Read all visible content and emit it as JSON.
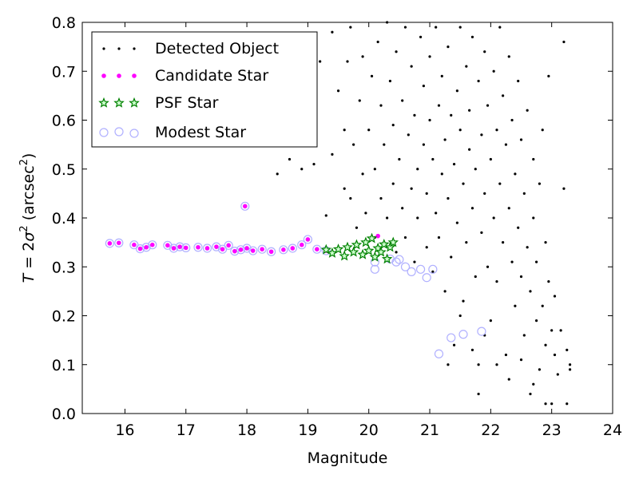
{
  "chart_data": {
    "type": "scatter",
    "xlabel": "Magnitude",
    "ylabel_parts": {
      "T": "T",
      "eq": " = 2",
      "sigma": "σ",
      "exp": "2",
      "unit": " (arcsec",
      "unit_exp": "2",
      "close": ")"
    },
    "xlim": [
      15.3,
      24
    ],
    "ylim": [
      0.0,
      0.8
    ],
    "x_ticks": [
      16,
      17,
      18,
      19,
      20,
      21,
      22,
      23,
      24
    ],
    "y_ticks": [
      0.0,
      0.1,
      0.2,
      0.3,
      0.4,
      0.5,
      0.6,
      0.7,
      0.8
    ],
    "y_tick_labels": [
      "0.0",
      "0.1",
      "0.2",
      "0.3",
      "0.4",
      "0.5",
      "0.6",
      "0.7",
      "0.8"
    ],
    "legend": {
      "position": "upper-left",
      "entries": [
        "Detected Object",
        "Candidate Star",
        "PSF Star",
        "Modest Star"
      ]
    },
    "colors": {
      "detected": "#000000",
      "candidate": "#ff00ff",
      "psf": "#008000",
      "modest": "#b0b0ff"
    },
    "series": [
      {
        "name": "Detected Object",
        "marker": "dot",
        "points": [
          [
            15.75,
            0.348
          ],
          [
            15.9,
            0.349
          ],
          [
            16.15,
            0.345
          ],
          [
            16.25,
            0.337
          ],
          [
            16.35,
            0.34
          ],
          [
            16.45,
            0.345
          ],
          [
            16.7,
            0.344
          ],
          [
            16.8,
            0.338
          ],
          [
            16.9,
            0.341
          ],
          [
            17.0,
            0.339
          ],
          [
            17.2,
            0.34
          ],
          [
            17.35,
            0.338
          ],
          [
            17.5,
            0.341
          ],
          [
            17.6,
            0.336
          ],
          [
            17.7,
            0.344
          ],
          [
            17.8,
            0.332
          ],
          [
            17.9,
            0.335
          ],
          [
            18.0,
            0.338
          ],
          [
            18.1,
            0.333
          ],
          [
            18.25,
            0.336
          ],
          [
            18.4,
            0.331
          ],
          [
            18.6,
            0.335
          ],
          [
            18.75,
            0.338
          ],
          [
            18.9,
            0.345
          ],
          [
            19.0,
            0.356
          ],
          [
            19.15,
            0.336
          ],
          [
            19.3,
            0.333
          ],
          [
            17.97,
            0.424
          ],
          [
            18.5,
            0.49
          ],
          [
            18.7,
            0.52
          ],
          [
            18.8,
            0.6
          ],
          [
            18.9,
            0.5
          ],
          [
            19.1,
            0.51
          ],
          [
            19.1,
            0.75
          ],
          [
            19.2,
            0.72
          ],
          [
            19.3,
            0.405
          ],
          [
            19.4,
            0.53
          ],
          [
            19.4,
            0.78
          ],
          [
            19.5,
            0.66
          ],
          [
            19.6,
            0.58
          ],
          [
            19.6,
            0.46
          ],
          [
            19.65,
            0.72
          ],
          [
            19.7,
            0.44
          ],
          [
            19.7,
            0.79
          ],
          [
            19.75,
            0.55
          ],
          [
            19.8,
            0.38
          ],
          [
            19.85,
            0.64
          ],
          [
            19.9,
            0.49
          ],
          [
            19.9,
            0.73
          ],
          [
            19.95,
            0.41
          ],
          [
            20.0,
            0.58
          ],
          [
            20.05,
            0.69
          ],
          [
            20.1,
            0.36
          ],
          [
            20.1,
            0.5
          ],
          [
            20.15,
            0.76
          ],
          [
            20.2,
            0.44
          ],
          [
            20.2,
            0.63
          ],
          [
            20.25,
            0.55
          ],
          [
            20.3,
            0.4
          ],
          [
            20.3,
            0.8
          ],
          [
            20.35,
            0.68
          ],
          [
            20.4,
            0.47
          ],
          [
            20.4,
            0.59
          ],
          [
            20.45,
            0.33
          ],
          [
            20.45,
            0.74
          ],
          [
            20.5,
            0.52
          ],
          [
            20.55,
            0.42
          ],
          [
            20.55,
            0.64
          ],
          [
            20.6,
            0.79
          ],
          [
            20.6,
            0.36
          ],
          [
            20.65,
            0.57
          ],
          [
            20.7,
            0.46
          ],
          [
            20.7,
            0.71
          ],
          [
            20.75,
            0.31
          ],
          [
            20.75,
            0.61
          ],
          [
            20.8,
            0.5
          ],
          [
            20.8,
            0.4
          ],
          [
            20.85,
            0.77
          ],
          [
            20.9,
            0.55
          ],
          [
            20.9,
            0.67
          ],
          [
            20.95,
            0.34
          ],
          [
            20.95,
            0.45
          ],
          [
            21.0,
            0.6
          ],
          [
            21.0,
            0.73
          ],
          [
            21.05,
            0.29
          ],
          [
            21.05,
            0.52
          ],
          [
            21.1,
            0.41
          ],
          [
            21.1,
            0.79
          ],
          [
            21.15,
            0.63
          ],
          [
            21.15,
            0.36
          ],
          [
            21.2,
            0.49
          ],
          [
            21.2,
            0.69
          ],
          [
            21.25,
            0.56
          ],
          [
            21.25,
            0.25
          ],
          [
            21.3,
            0.44
          ],
          [
            21.3,
            0.75
          ],
          [
            21.35,
            0.61
          ],
          [
            21.35,
            0.32
          ],
          [
            21.4,
            0.51
          ],
          [
            21.4,
            0.14
          ],
          [
            21.45,
            0.66
          ],
          [
            21.45,
            0.39
          ],
          [
            21.5,
            0.58
          ],
          [
            21.5,
            0.79
          ],
          [
            21.55,
            0.47
          ],
          [
            21.55,
            0.23
          ],
          [
            21.6,
            0.71
          ],
          [
            21.6,
            0.35
          ],
          [
            21.65,
            0.54
          ],
          [
            21.65,
            0.62
          ],
          [
            21.7,
            0.42
          ],
          [
            21.7,
            0.77
          ],
          [
            21.75,
            0.28
          ],
          [
            21.75,
            0.5
          ],
          [
            21.8,
            0.68
          ],
          [
            21.8,
            0.1
          ],
          [
            21.85,
            0.57
          ],
          [
            21.85,
            0.37
          ],
          [
            21.9,
            0.45
          ],
          [
            21.9,
            0.74
          ],
          [
            21.95,
            0.3
          ],
          [
            21.95,
            0.63
          ],
          [
            22.0,
            0.52
          ],
          [
            22.0,
            0.19
          ],
          [
            22.05,
            0.4
          ],
          [
            22.05,
            0.7
          ],
          [
            22.1,
            0.58
          ],
          [
            22.1,
            0.27
          ],
          [
            22.15,
            0.47
          ],
          [
            22.15,
            0.79
          ],
          [
            22.2,
            0.35
          ],
          [
            22.2,
            0.65
          ],
          [
            22.25,
            0.12
          ],
          [
            22.25,
            0.55
          ],
          [
            22.3,
            0.42
          ],
          [
            22.3,
            0.73
          ],
          [
            22.35,
            0.31
          ],
          [
            22.35,
            0.6
          ],
          [
            22.4,
            0.22
          ],
          [
            22.4,
            0.49
          ],
          [
            22.45,
            0.38
          ],
          [
            22.45,
            0.68
          ],
          [
            22.5,
            0.28
          ],
          [
            22.5,
            0.56
          ],
          [
            22.55,
            0.16
          ],
          [
            22.55,
            0.45
          ],
          [
            22.6,
            0.34
          ],
          [
            22.6,
            0.62
          ],
          [
            22.65,
            0.04
          ],
          [
            22.65,
            0.25
          ],
          [
            22.7,
            0.4
          ],
          [
            22.7,
            0.52
          ],
          [
            22.75,
            0.19
          ],
          [
            22.75,
            0.31
          ],
          [
            22.8,
            0.09
          ],
          [
            22.8,
            0.47
          ],
          [
            22.85,
            0.22
          ],
          [
            22.85,
            0.58
          ],
          [
            22.9,
            0.14
          ],
          [
            22.9,
            0.35
          ],
          [
            22.95,
            0.27
          ],
          [
            22.95,
            0.69
          ],
          [
            23.0,
            0.17
          ],
          [
            23.0,
            0.02
          ],
          [
            23.05,
            0.12
          ],
          [
            23.05,
            0.24
          ],
          [
            23.1,
            0.08
          ],
          [
            23.15,
            0.17
          ],
          [
            23.2,
            0.46
          ],
          [
            23.2,
            0.76
          ],
          [
            23.25,
            0.13
          ],
          [
            23.25,
            0.02
          ],
          [
            23.3,
            0.1
          ],
          [
            23.3,
            0.09
          ],
          [
            21.3,
            0.1
          ],
          [
            21.5,
            0.2
          ],
          [
            21.7,
            0.13
          ],
          [
            21.9,
            0.16
          ],
          [
            22.1,
            0.1
          ],
          [
            22.3,
            0.07
          ],
          [
            22.5,
            0.11
          ],
          [
            22.7,
            0.06
          ],
          [
            22.9,
            0.02
          ],
          [
            21.8,
            0.04
          ]
        ]
      },
      {
        "name": "Candidate Star",
        "marker": "small-circle",
        "points": [
          [
            15.75,
            0.348
          ],
          [
            15.9,
            0.349
          ],
          [
            16.15,
            0.345
          ],
          [
            16.25,
            0.337
          ],
          [
            16.35,
            0.34
          ],
          [
            16.45,
            0.345
          ],
          [
            16.7,
            0.344
          ],
          [
            16.8,
            0.338
          ],
          [
            16.9,
            0.341
          ],
          [
            17.0,
            0.339
          ],
          [
            17.2,
            0.34
          ],
          [
            17.35,
            0.338
          ],
          [
            17.5,
            0.341
          ],
          [
            17.6,
            0.336
          ],
          [
            17.7,
            0.344
          ],
          [
            17.8,
            0.332
          ],
          [
            17.9,
            0.335
          ],
          [
            18.0,
            0.338
          ],
          [
            18.1,
            0.333
          ],
          [
            18.25,
            0.336
          ],
          [
            18.4,
            0.331
          ],
          [
            18.6,
            0.335
          ],
          [
            18.75,
            0.338
          ],
          [
            18.9,
            0.345
          ],
          [
            19.0,
            0.356
          ],
          [
            19.15,
            0.336
          ],
          [
            19.3,
            0.333
          ],
          [
            17.97,
            0.424
          ],
          [
            20.15,
            0.363
          ]
        ]
      },
      {
        "name": "PSF Star",
        "marker": "star",
        "points": [
          [
            19.3,
            0.335
          ],
          [
            19.4,
            0.328
          ],
          [
            19.5,
            0.336
          ],
          [
            19.6,
            0.322
          ],
          [
            19.65,
            0.34
          ],
          [
            19.75,
            0.33
          ],
          [
            19.8,
            0.345
          ],
          [
            19.9,
            0.325
          ],
          [
            19.95,
            0.35
          ],
          [
            20.0,
            0.333
          ],
          [
            20.05,
            0.358
          ],
          [
            20.1,
            0.32
          ],
          [
            20.15,
            0.338
          ],
          [
            20.2,
            0.33
          ],
          [
            20.25,
            0.346
          ],
          [
            20.3,
            0.316
          ],
          [
            20.35,
            0.34
          ],
          [
            20.4,
            0.35
          ]
        ]
      },
      {
        "name": "Modest Star",
        "marker": "open-circle",
        "points": [
          [
            15.75,
            0.348
          ],
          [
            15.9,
            0.349
          ],
          [
            16.15,
            0.345
          ],
          [
            16.25,
            0.337
          ],
          [
            16.35,
            0.34
          ],
          [
            16.45,
            0.345
          ],
          [
            16.7,
            0.344
          ],
          [
            16.8,
            0.338
          ],
          [
            16.9,
            0.341
          ],
          [
            17.0,
            0.339
          ],
          [
            17.2,
            0.34
          ],
          [
            17.35,
            0.338
          ],
          [
            17.5,
            0.341
          ],
          [
            17.6,
            0.336
          ],
          [
            17.7,
            0.344
          ],
          [
            17.8,
            0.332
          ],
          [
            17.9,
            0.335
          ],
          [
            18.0,
            0.338
          ],
          [
            18.1,
            0.333
          ],
          [
            18.25,
            0.336
          ],
          [
            18.4,
            0.331
          ],
          [
            18.6,
            0.335
          ],
          [
            18.75,
            0.338
          ],
          [
            18.9,
            0.345
          ],
          [
            19.0,
            0.356
          ],
          [
            19.15,
            0.336
          ],
          [
            19.3,
            0.333
          ],
          [
            17.97,
            0.424
          ],
          [
            20.1,
            0.295
          ],
          [
            20.45,
            0.31
          ],
          [
            20.6,
            0.3
          ],
          [
            20.7,
            0.29
          ],
          [
            20.85,
            0.295
          ],
          [
            20.95,
            0.278
          ],
          [
            21.05,
            0.295
          ],
          [
            21.15,
            0.122
          ],
          [
            21.35,
            0.155
          ],
          [
            21.55,
            0.162
          ],
          [
            21.85,
            0.168
          ],
          [
            20.35,
            0.316
          ],
          [
            20.5,
            0.315
          ],
          [
            20.1,
            0.31
          ]
        ]
      }
    ]
  }
}
